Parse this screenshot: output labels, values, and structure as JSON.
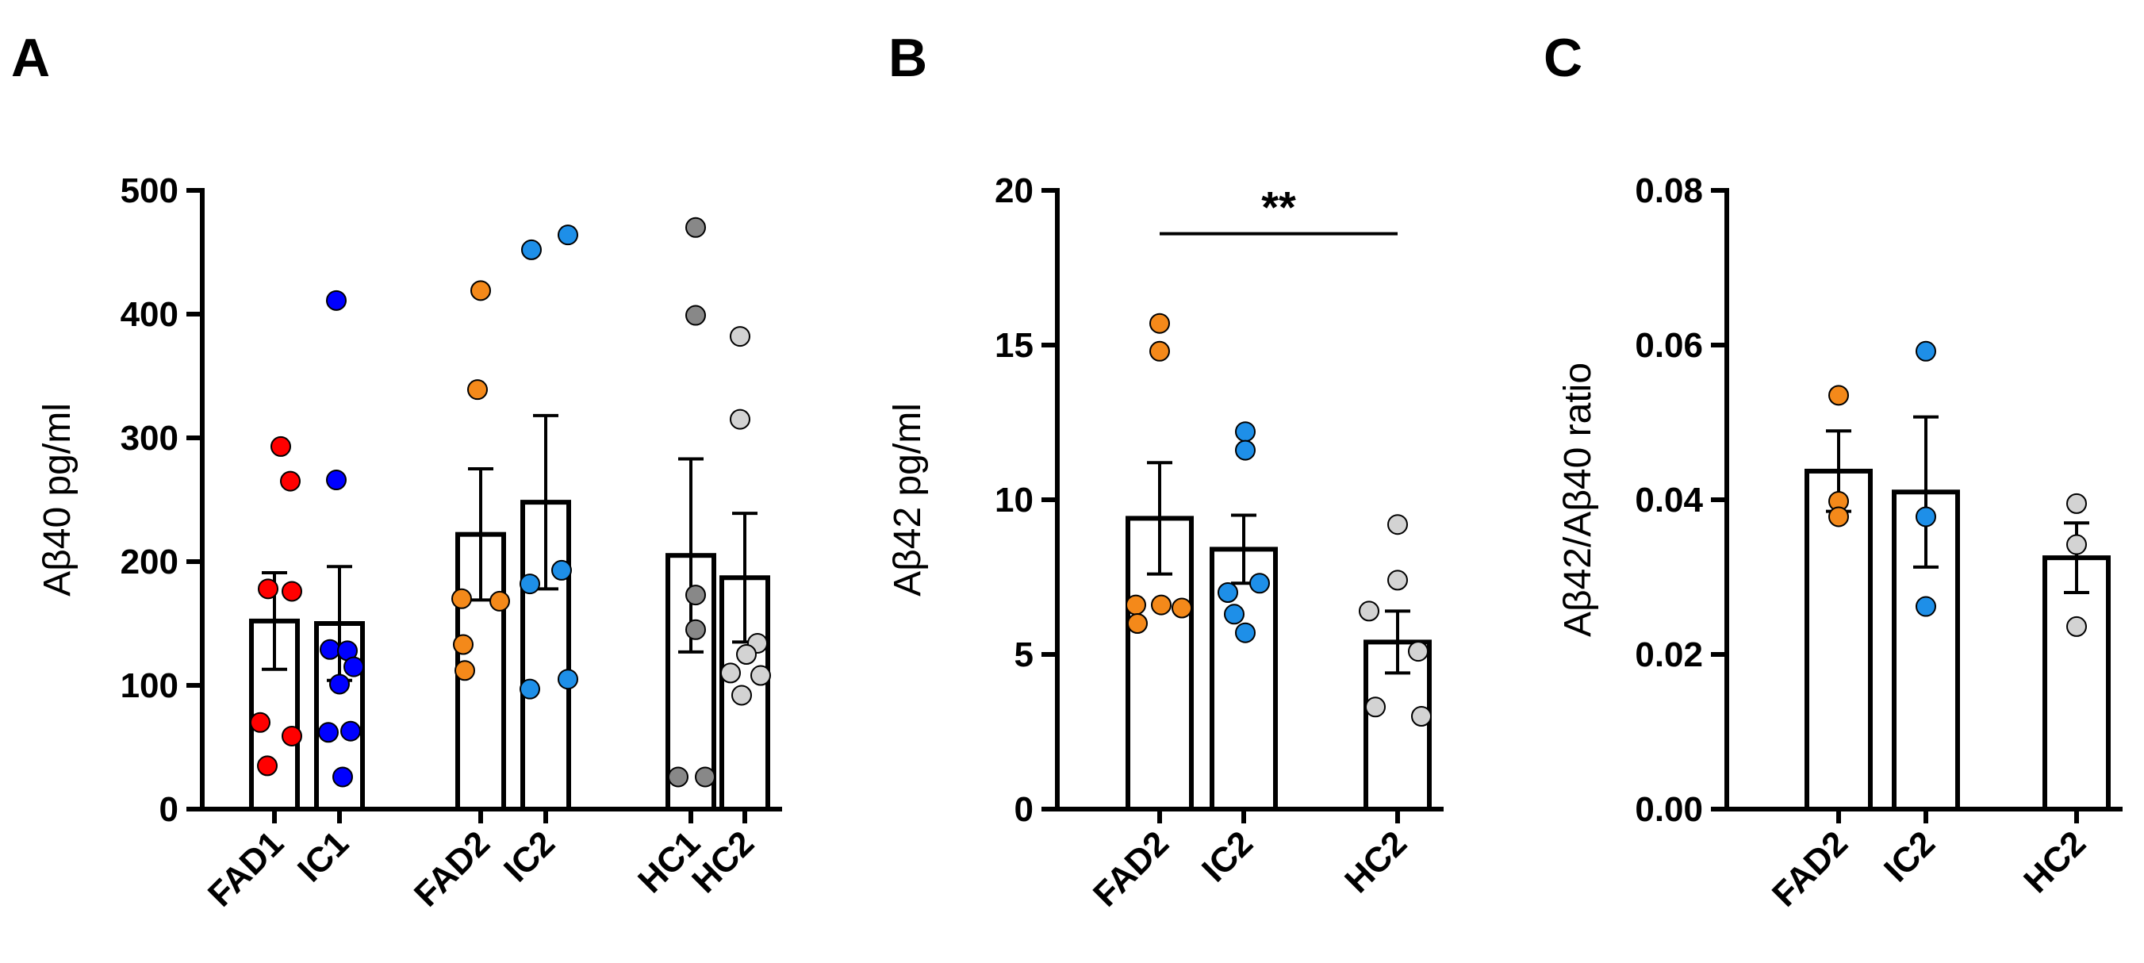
{
  "chart_data": [
    {
      "panel": "A",
      "type": "bar",
      "ylabel": "Aβ40 pg/ml",
      "ylim": [
        0,
        500
      ],
      "yticks": [
        0,
        100,
        200,
        300,
        400,
        500
      ],
      "categories": [
        "FAD1",
        "IC1",
        "FAD2",
        "IC2",
        "HC1",
        "HC2"
      ],
      "bars": [
        {
          "category": "FAD1",
          "mean": 152,
          "sem": 39,
          "color": "#ff0000",
          "points": [
            293,
            265,
            178,
            176,
            70,
            59,
            35
          ]
        },
        {
          "category": "IC1",
          "mean": 150,
          "sem": 46,
          "color": "#0000ff",
          "points": [
            411,
            266,
            129,
            128,
            115,
            101,
            63,
            62,
            26
          ]
        },
        {
          "category": "FAD2",
          "mean": 222,
          "sem": 53,
          "color": "#f4891a",
          "points": [
            419,
            339,
            170,
            168,
            133,
            112
          ]
        },
        {
          "category": "IC2",
          "mean": 248,
          "sem": 70,
          "color": "#1e8fe8",
          "points": [
            452,
            464,
            193,
            182,
            105,
            97
          ]
        },
        {
          "category": "HC1",
          "mean": 205,
          "sem": 78,
          "color": "#888888",
          "points": [
            470,
            399,
            173,
            145,
            26,
            26
          ]
        },
        {
          "category": "HC2",
          "mean": 187,
          "sem": 52,
          "color": "#d3d3d3",
          "points": [
            382,
            315,
            134,
            125,
            110,
            108,
            92
          ]
        }
      ]
    },
    {
      "panel": "B",
      "type": "bar",
      "ylabel": "Aβ42 pg/ml",
      "ylim": [
        0,
        20
      ],
      "yticks": [
        0,
        5,
        10,
        15,
        20
      ],
      "categories": [
        "FAD2",
        "IC2",
        "HC2"
      ],
      "bars": [
        {
          "category": "FAD2",
          "mean": 9.4,
          "sem": 1.8,
          "color": "#f4891a",
          "points": [
            15.7,
            14.8,
            6.6,
            6.6,
            6.5,
            6.0
          ]
        },
        {
          "category": "IC2",
          "mean": 8.4,
          "sem": 1.1,
          "color": "#1e8fe8",
          "points": [
            12.2,
            11.6,
            7.3,
            7.0,
            6.3,
            5.7
          ]
        },
        {
          "category": "HC2",
          "mean": 5.4,
          "sem": 1.0,
          "color": "#d3d3d3",
          "points": [
            9.2,
            7.4,
            6.4,
            5.1,
            3.3,
            3.0
          ]
        }
      ],
      "significance": {
        "label": "**",
        "from": "FAD2",
        "to": "HC2",
        "y": 18.6
      }
    },
    {
      "panel": "C",
      "type": "bar",
      "ylabel": "Aβ42/Aβ40 ratio",
      "ylim": [
        0,
        0.08
      ],
      "yticks": [
        "0.00",
        "0.02",
        "0.04",
        "0.06",
        "0.08"
      ],
      "categories": [
        "FAD2",
        "IC2",
        "HC2"
      ],
      "bars": [
        {
          "category": "FAD2",
          "mean": 0.0437,
          "sem": 0.0052,
          "color": "#f4891a",
          "points": [
            0.0535,
            0.0398,
            0.0378
          ]
        },
        {
          "category": "IC2",
          "mean": 0.041,
          "sem": 0.0097,
          "color": "#1e8fe8",
          "points": [
            0.0592,
            0.0378,
            0.0262
          ]
        },
        {
          "category": "HC2",
          "mean": 0.0325,
          "sem": 0.0045,
          "color": "#d3d3d3",
          "points": [
            0.0395,
            0.0342,
            0.0236
          ]
        }
      ]
    }
  ]
}
